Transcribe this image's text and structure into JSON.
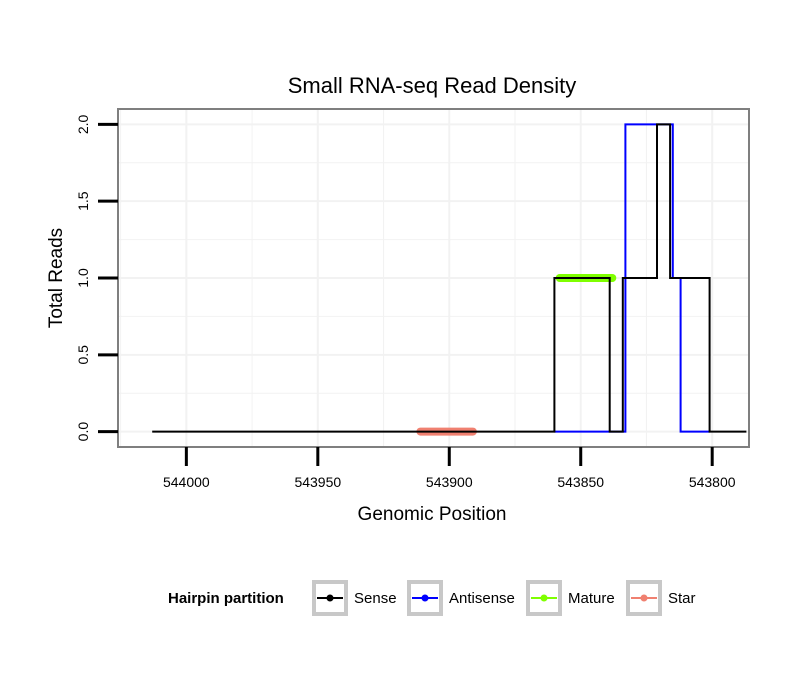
{
  "chart_data": {
    "type": "line",
    "title": "Small RNA-seq Read Density",
    "xlabel": "Genomic Position",
    "ylabel": "Total Reads",
    "x_reversed": true,
    "xlim": [
      544026,
      543786
    ],
    "ylim": [
      -0.1,
      2.1
    ],
    "x_ticks": [
      544000,
      543950,
      543900,
      543850,
      543800
    ],
    "x_tick_labels": [
      "544000",
      "543950",
      "543900",
      "543850",
      "543800"
    ],
    "y_ticks": [
      0,
      0.5,
      1,
      1.5,
      2
    ],
    "y_tick_labels": [
      "0.0",
      "0.5",
      "1.0",
      "1.5",
      "2.0"
    ],
    "grid": true,
    "legend": {
      "title": "Hairpin partition",
      "position": "bottom",
      "entries": [
        {
          "label": "Sense",
          "color": "#000000"
        },
        {
          "label": "Antisense",
          "color": "#0000ff"
        },
        {
          "label": "Mature",
          "color": "#7fff00"
        },
        {
          "label": "Star",
          "color": "#f08070"
        }
      ]
    },
    "series": [
      {
        "name": "Sense",
        "color": "#000000",
        "step": true,
        "x": [
          544013,
          543860,
          543860,
          543839,
          543839,
          543834,
          543834,
          543821,
          543821,
          543816,
          543816,
          543801,
          543801,
          543787
        ],
        "y": [
          0,
          0,
          1,
          1,
          0,
          0,
          1,
          1,
          2,
          2,
          1,
          1,
          0,
          0
        ]
      },
      {
        "name": "Antisense",
        "color": "#0000ff",
        "step": true,
        "x": [
          543860,
          543833,
          543833,
          543815,
          543815,
          543812,
          543812,
          543801
        ],
        "y": [
          0,
          0,
          2,
          2,
          1,
          1,
          0,
          0
        ]
      },
      {
        "name": "Mature",
        "color": "#7fff00",
        "x": [
          543858,
          543838
        ],
        "y": [
          1,
          1
        ]
      },
      {
        "name": "Star",
        "color": "#f08070",
        "x": [
          543911,
          543891
        ],
        "y": [
          0,
          0
        ]
      }
    ]
  }
}
